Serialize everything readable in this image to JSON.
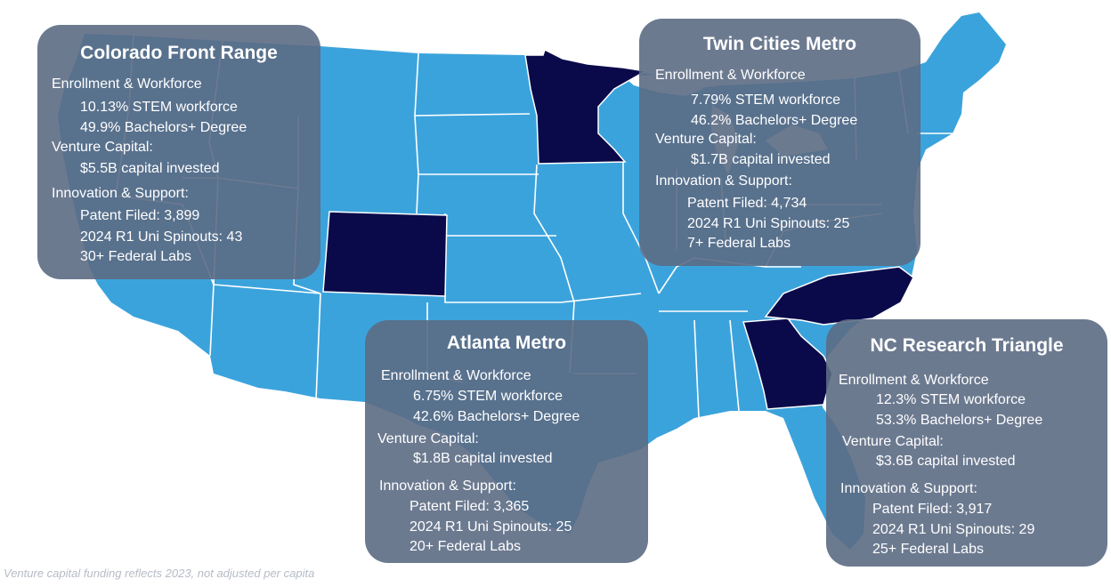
{
  "colors": {
    "map_states": "#3ba3dc",
    "highlight_states": "#0a0a4a",
    "state_borders": "#ffffff",
    "card_background": "#5c6c84",
    "card_text": "#ffffff",
    "footnote_text": "#b6bcc6"
  },
  "highlighted_states": [
    "Colorado",
    "Minnesota",
    "Georgia",
    "North Carolina"
  ],
  "regions": {
    "colorado": {
      "title": "Colorado Front Range",
      "enrollment_heading": "Enrollment & Workforce",
      "stem": "10.13% STEM workforce",
      "bachelors": "49.9% Bachelors+ Degree",
      "vc_heading": "Venture Capital:",
      "vc": "$5.5B capital invested",
      "innovation_heading": "Innovation & Support:",
      "patents": "Patent Filed: 3,899",
      "spinouts": "2024 R1 Uni Spinouts: 43",
      "labs": "30+ Federal Labs"
    },
    "twin_cities": {
      "title": "Twin Cities Metro",
      "enrollment_heading": "Enrollment & Workforce",
      "stem": "7.79% STEM workforce",
      "bachelors": "46.2% Bachelors+ Degree",
      "vc_heading": "Venture Capital:",
      "vc": "$1.7B capital invested",
      "innovation_heading": "Innovation & Support:",
      "patents": "Patent Filed: 4,734",
      "spinouts": "2024 R1 Uni Spinouts: 25",
      "labs": "7+ Federal Labs"
    },
    "atlanta": {
      "title": "Atlanta Metro",
      "enrollment_heading": "Enrollment & Workforce",
      "stem": "6.75% STEM workforce",
      "bachelors": "42.6% Bachelors+ Degree",
      "vc_heading": "Venture Capital:",
      "vc": "$1.8B capital invested",
      "innovation_heading": "Innovation & Support:",
      "patents": "Patent Filed: 3,365",
      "spinouts": "2024 R1 Uni Spinouts: 25",
      "labs": "20+ Federal Labs"
    },
    "nc_triangle": {
      "title": "NC Research Triangle",
      "enrollment_heading": "Enrollment & Workforce",
      "stem": "12.3% STEM workforce",
      "bachelors": "53.3% Bachelors+ Degree",
      "vc_heading": "Venture Capital:",
      "vc": "$3.6B capital invested",
      "innovation_heading": "Innovation & Support:",
      "patents": "Patent Filed: 3,917",
      "spinouts": "2024 R1 Uni Spinouts: 29",
      "labs": "25+ Federal Labs"
    }
  },
  "footnote": "Venture capital funding reflects 2023, not adjusted per capita"
}
